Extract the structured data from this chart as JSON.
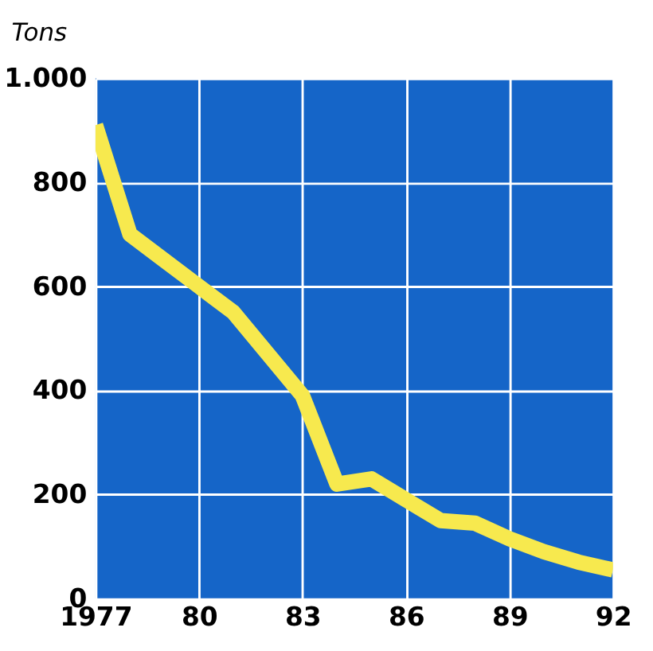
{
  "chart_data": {
    "type": "line",
    "ylabel": "Tons",
    "x": [
      1977,
      1978,
      1979,
      1980,
      1981,
      1982,
      1983,
      1984,
      1985,
      1986,
      1987,
      1988,
      1989,
      1990,
      1991,
      1992
    ],
    "series": [
      {
        "color": "#f7e94e",
        "values": [
          910,
          700,
          650,
          600,
          550,
          470,
          390,
          220,
          230,
          190,
          150,
          145,
          115,
          90,
          70,
          55
        ]
      }
    ],
    "xlim": [
      1977,
      1992
    ],
    "xticks": [
      {
        "value": 1977,
        "label": "1977"
      },
      {
        "value": 1980,
        "label": "80"
      },
      {
        "value": 1983,
        "label": "83"
      },
      {
        "value": 1986,
        "label": "86"
      },
      {
        "value": 1989,
        "label": "89"
      },
      {
        "value": 1992,
        "label": "92"
      }
    ],
    "ylim": [
      0,
      1000
    ],
    "yticks": [
      0,
      200,
      400,
      600,
      800,
      {
        "value": 1000,
        "label": "1.000"
      }
    ],
    "grid": true,
    "line_style": "solid",
    "marker": "none"
  }
}
